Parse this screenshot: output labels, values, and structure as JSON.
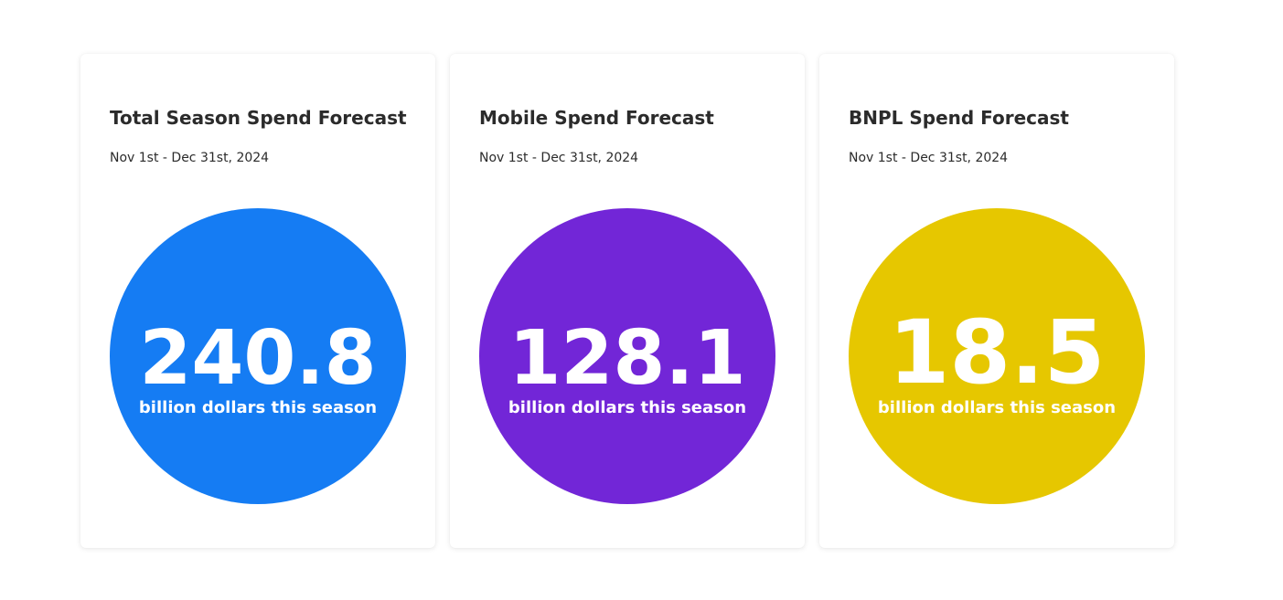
{
  "cards": [
    {
      "title": "Total Season Spend Forecast",
      "dates": "Nov 1st - Dec 31st, 2024",
      "value": "240.8",
      "caption": "billion dollars this season",
      "color": "#157cf3"
    },
    {
      "title": "Mobile Spend Forecast",
      "dates": "Nov 1st - Dec 31st, 2024",
      "value": "128.1",
      "caption": "billion dollars this season",
      "color": "#7226d7"
    },
    {
      "title": "BNPL Spend Forecast",
      "dates": "Nov 1st - Dec 31st, 2024",
      "value": "18.5",
      "caption": "billion dollars this season",
      "color": "#e6c700"
    }
  ]
}
